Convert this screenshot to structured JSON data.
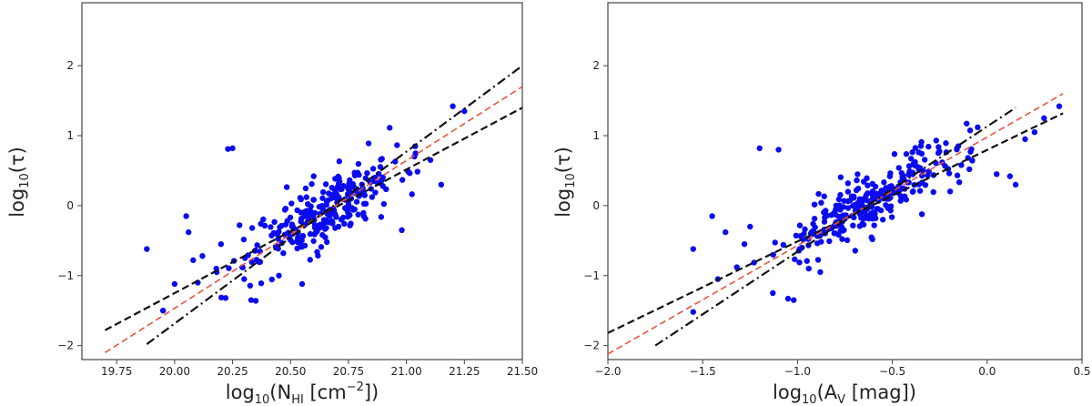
{
  "chart_data": [
    {
      "type": "scatter",
      "xlabel": "log10(NHI  [cm−2])",
      "ylabel": "log10(τ)",
      "xlim": [
        19.6,
        21.5
      ],
      "ylim": [
        -2.2,
        2.9
      ],
      "xticks": [
        19.75,
        20.0,
        20.25,
        20.5,
        20.75,
        21.0,
        21.25,
        21.5
      ],
      "xtick_labels": [
        "19.75",
        "20.00",
        "20.25",
        "20.50",
        "20.75",
        "21.00",
        "21.25",
        "21.50"
      ],
      "yticks": [
        -2,
        -1,
        0,
        1,
        2
      ],
      "ytick_labels": [
        "−2",
        "−1",
        "0",
        "1",
        "2"
      ],
      "point_color": "#0b0bef",
      "outliers": [
        {
          "x": 19.88,
          "y": -0.62
        },
        {
          "x": 19.95,
          "y": -1.5
        },
        {
          "x": 20.0,
          "y": -1.12
        },
        {
          "x": 20.05,
          "y": -0.15
        },
        {
          "x": 20.06,
          "y": -0.38
        },
        {
          "x": 20.08,
          "y": -0.78
        },
        {
          "x": 20.12,
          "y": -0.72
        },
        {
          "x": 20.23,
          "y": 0.81
        },
        {
          "x": 20.25,
          "y": 0.82
        },
        {
          "x": 20.28,
          "y": -0.28
        },
        {
          "x": 20.22,
          "y": -1.32
        },
        {
          "x": 20.3,
          "y": -1.05
        },
        {
          "x": 20.33,
          "y": -1.35
        },
        {
          "x": 20.35,
          "y": -1.36
        },
        {
          "x": 20.45,
          "y": -1.0
        },
        {
          "x": 20.55,
          "y": -1.12
        },
        {
          "x": 20.6,
          "y": 0.42
        },
        {
          "x": 20.98,
          "y": -0.35
        },
        {
          "x": 21.2,
          "y": 1.42
        },
        {
          "x": 21.25,
          "y": 1.35
        },
        {
          "x": 21.15,
          "y": 0.3
        },
        {
          "x": 20.1,
          "y": -1.1
        },
        {
          "x": 20.2,
          "y": -0.55
        },
        {
          "x": 20.18,
          "y": -0.9
        }
      ],
      "cloud": {
        "n": 270,
        "x_range": [
          20.1,
          21.2
        ],
        "slope": 1.9,
        "pivot_x": 20.65,
        "pivot_y": -0.1,
        "scatter": 0.22,
        "seed": 7
      },
      "series": [
        {
          "name": "fit-dashed",
          "style": "dashed",
          "color": "#111111",
          "x": [
            19.7,
            21.5
          ],
          "y": [
            -1.78,
            1.4
          ]
        },
        {
          "name": "fit-red-dashed",
          "style": "dashed",
          "color": "#e8553e",
          "x": [
            19.7,
            21.5
          ],
          "y": [
            -2.1,
            1.7
          ]
        },
        {
          "name": "fit-dashdot",
          "style": "dashdot",
          "color": "#111111",
          "x": [
            19.88,
            21.5
          ],
          "y": [
            -1.98,
            2.0
          ]
        }
      ]
    },
    {
      "type": "scatter",
      "xlabel": "log10(AV [mag])",
      "ylabel": "log10(τ)",
      "xlim": [
        -2.0,
        0.5
      ],
      "ylim": [
        -2.2,
        2.9
      ],
      "xticks": [
        -2.0,
        -1.5,
        -1.0,
        -0.5,
        0.0,
        0.5
      ],
      "xtick_labels": [
        "−2.0",
        "−1.5",
        "−1.0",
        "−0.5",
        "0.0",
        "0.5"
      ],
      "yticks": [
        -2,
        -1,
        0,
        1,
        2
      ],
      "ytick_labels": [
        "−2",
        "−1",
        "0",
        "1",
        "2"
      ],
      "point_color": "#0b0bef",
      "outliers": [
        {
          "x": -1.55,
          "y": -0.62
        },
        {
          "x": -1.55,
          "y": -1.52
        },
        {
          "x": -1.45,
          "y": -0.15
        },
        {
          "x": -1.38,
          "y": -0.38
        },
        {
          "x": -1.2,
          "y": 0.82
        },
        {
          "x": -1.1,
          "y": 0.8
        },
        {
          "x": -1.25,
          "y": -0.3
        },
        {
          "x": -1.05,
          "y": -1.33
        },
        {
          "x": -1.02,
          "y": -1.35
        },
        {
          "x": -1.13,
          "y": -1.25
        },
        {
          "x": -0.88,
          "y": -0.95
        },
        {
          "x": 0.05,
          "y": 0.45
        },
        {
          "x": 0.12,
          "y": 0.42
        },
        {
          "x": 0.15,
          "y": 0.3
        },
        {
          "x": 0.3,
          "y": 1.25
        },
        {
          "x": 0.38,
          "y": 1.42
        },
        {
          "x": 0.2,
          "y": 0.95
        },
        {
          "x": -0.05,
          "y": 1.12
        },
        {
          "x": -1.28,
          "y": -0.55
        },
        {
          "x": -1.32,
          "y": -0.88
        },
        {
          "x": -0.65,
          "y": 0.1
        },
        {
          "x": -0.55,
          "y": -0.2
        },
        {
          "x": 0.25,
          "y": 1.05
        },
        {
          "x": -1.42,
          "y": -1.05
        }
      ],
      "cloud": {
        "n": 270,
        "x_range": [
          -1.3,
          0.1
        ],
        "slope": 1.35,
        "pivot_x": -0.65,
        "pivot_y": 0.0,
        "scatter": 0.2,
        "seed": 23
      },
      "series": [
        {
          "name": "fit-dashed",
          "style": "dashed",
          "color": "#111111",
          "x": [
            -2.0,
            0.4
          ],
          "y": [
            -1.82,
            1.32
          ]
        },
        {
          "name": "fit-red-dashed",
          "style": "dashed",
          "color": "#e8553e",
          "x": [
            -2.0,
            0.4
          ],
          "y": [
            -2.12,
            1.6
          ]
        },
        {
          "name": "fit-dashdot",
          "style": "dashdot",
          "color": "#111111",
          "x": [
            -1.75,
            0.15
          ],
          "y": [
            -2.0,
            1.4
          ]
        }
      ]
    }
  ]
}
